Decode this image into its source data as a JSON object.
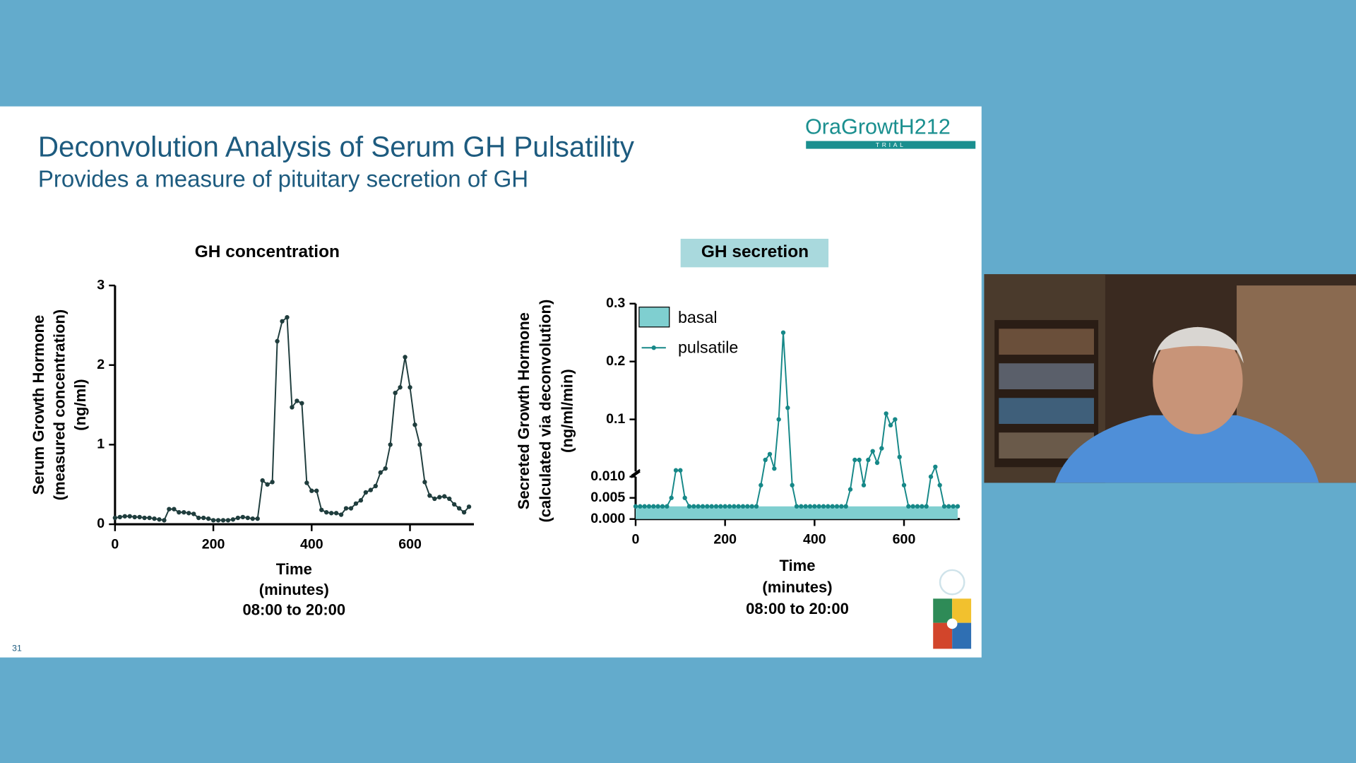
{
  "slide": {
    "title": "Deconvolution Analysis of Serum GH Pulsatility",
    "subtitle": "Provides a measure of pituitary secretion of GH",
    "page": "31",
    "logo": {
      "name": "OraGrowtH212",
      "tag": "TRIAL"
    }
  },
  "chart_data": [
    {
      "type": "line",
      "title": "GH concentration",
      "ylabel": [
        "Serum Growth Hormone",
        "(measured concentration)",
        "(ng/ml)"
      ],
      "xlabel": [
        "Time",
        "(minutes)",
        "08:00 to 20:00"
      ],
      "x": [
        0,
        10,
        20,
        30,
        40,
        50,
        60,
        70,
        80,
        90,
        100,
        110,
        120,
        130,
        140,
        150,
        160,
        170,
        180,
        190,
        200,
        210,
        220,
        230,
        240,
        250,
        260,
        270,
        280,
        290,
        300,
        310,
        320,
        330,
        340,
        350,
        360,
        370,
        380,
        390,
        400,
        410,
        420,
        430,
        440,
        450,
        460,
        470,
        480,
        490,
        500,
        510,
        520,
        530,
        540,
        550,
        560,
        570,
        580,
        590,
        600,
        610,
        620,
        630,
        640,
        650,
        660,
        670,
        680,
        690,
        700,
        710,
        720
      ],
      "values": [
        0.08,
        0.09,
        0.1,
        0.1,
        0.09,
        0.09,
        0.08,
        0.08,
        0.07,
        0.06,
        0.05,
        0.19,
        0.19,
        0.15,
        0.15,
        0.14,
        0.13,
        0.08,
        0.08,
        0.07,
        0.05,
        0.05,
        0.05,
        0.05,
        0.06,
        0.08,
        0.09,
        0.08,
        0.07,
        0.07,
        0.55,
        0.5,
        0.53,
        2.3,
        2.55,
        2.6,
        1.47,
        1.55,
        1.52,
        0.52,
        0.42,
        0.42,
        0.18,
        0.15,
        0.14,
        0.14,
        0.12,
        0.2,
        0.2,
        0.26,
        0.3,
        0.4,
        0.43,
        0.48,
        0.65,
        0.7,
        1.0,
        1.65,
        1.72,
        2.1,
        1.72,
        1.25,
        1.0,
        0.53,
        0.36,
        0.32,
        0.34,
        0.35,
        0.32,
        0.25,
        0.2,
        0.15,
        0.22
      ],
      "color": "#1f3d3d",
      "xlim": [
        0,
        730
      ],
      "xticks": [
        0,
        200,
        400,
        600
      ],
      "ylim": [
        0,
        3
      ],
      "yticks": [
        0,
        1,
        2,
        3
      ]
    },
    {
      "type": "line",
      "title": "GH secretion",
      "ylabel": [
        "Secreted Growth Hormone",
        "(calculated via deconvolution)",
        "(ng/ml/min)"
      ],
      "xlabel": [
        "Time",
        "(minutes)",
        "08:00 to 20:00"
      ],
      "x": [
        0,
        10,
        20,
        30,
        40,
        50,
        60,
        70,
        80,
        90,
        100,
        110,
        120,
        130,
        140,
        150,
        160,
        170,
        180,
        190,
        200,
        210,
        220,
        230,
        240,
        250,
        260,
        270,
        280,
        290,
        300,
        310,
        320,
        330,
        340,
        350,
        360,
        370,
        380,
        390,
        400,
        410,
        420,
        430,
        440,
        450,
        460,
        470,
        480,
        490,
        500,
        510,
        520,
        530,
        540,
        550,
        560,
        570,
        580,
        590,
        600,
        610,
        620,
        630,
        640,
        650,
        660,
        670,
        680,
        690,
        700,
        710,
        720
      ],
      "series": [
        {
          "name": "basal",
          "kind": "area",
          "color": "#7fcfd0",
          "values": [
            0.003,
            0.003,
            0.003,
            0.003,
            0.003,
            0.003,
            0.003,
            0.003,
            0.003,
            0.003,
            0.003,
            0.003,
            0.003,
            0.003,
            0.003,
            0.003,
            0.003,
            0.003,
            0.003,
            0.003,
            0.003,
            0.003,
            0.003,
            0.003,
            0.003,
            0.003,
            0.003,
            0.003,
            0.003,
            0.003,
            0.003,
            0.003,
            0.003,
            0.003,
            0.003,
            0.003,
            0.003,
            0.003,
            0.003,
            0.003,
            0.003,
            0.003,
            0.003,
            0.003,
            0.003,
            0.003,
            0.003,
            0.003,
            0.003,
            0.003,
            0.003,
            0.003,
            0.003,
            0.003,
            0.003,
            0.003,
            0.003,
            0.003,
            0.003,
            0.003,
            0.003,
            0.003,
            0.003,
            0.003,
            0.003,
            0.003,
            0.003,
            0.003,
            0.003,
            0.003,
            0.003,
            0.003,
            0.003
          ]
        },
        {
          "name": "pulsatile",
          "kind": "line",
          "color": "#168888",
          "values": [
            0.003,
            0.003,
            0.003,
            0.003,
            0.003,
            0.003,
            0.003,
            0.003,
            0.005,
            0.012,
            0.012,
            0.005,
            0.003,
            0.003,
            0.003,
            0.003,
            0.003,
            0.003,
            0.003,
            0.003,
            0.003,
            0.003,
            0.003,
            0.003,
            0.003,
            0.003,
            0.003,
            0.003,
            0.008,
            0.03,
            0.04,
            0.015,
            0.1,
            0.25,
            0.12,
            0.008,
            0.003,
            0.003,
            0.003,
            0.003,
            0.003,
            0.003,
            0.003,
            0.003,
            0.003,
            0.003,
            0.003,
            0.003,
            0.007,
            0.03,
            0.03,
            0.008,
            0.03,
            0.045,
            0.025,
            0.05,
            0.11,
            0.09,
            0.1,
            0.035,
            0.008,
            0.003,
            0.003,
            0.003,
            0.003,
            0.003,
            0.01,
            0.018,
            0.008,
            0.003,
            0.003,
            0.003,
            0.003
          ]
        }
      ],
      "xlim": [
        0,
        725
      ],
      "xticks": [
        0,
        200,
        400,
        600
      ],
      "ylim": [
        0,
        0.3
      ],
      "ybreak": 0.01,
      "yticks": [
        {
          "value": 0,
          "label": "0.000"
        },
        {
          "value": 0.005,
          "label": "0.005"
        },
        {
          "value": 0.01,
          "label": "0.010"
        },
        0.1,
        0.2,
        0.3
      ],
      "legend": "top-left"
    }
  ]
}
